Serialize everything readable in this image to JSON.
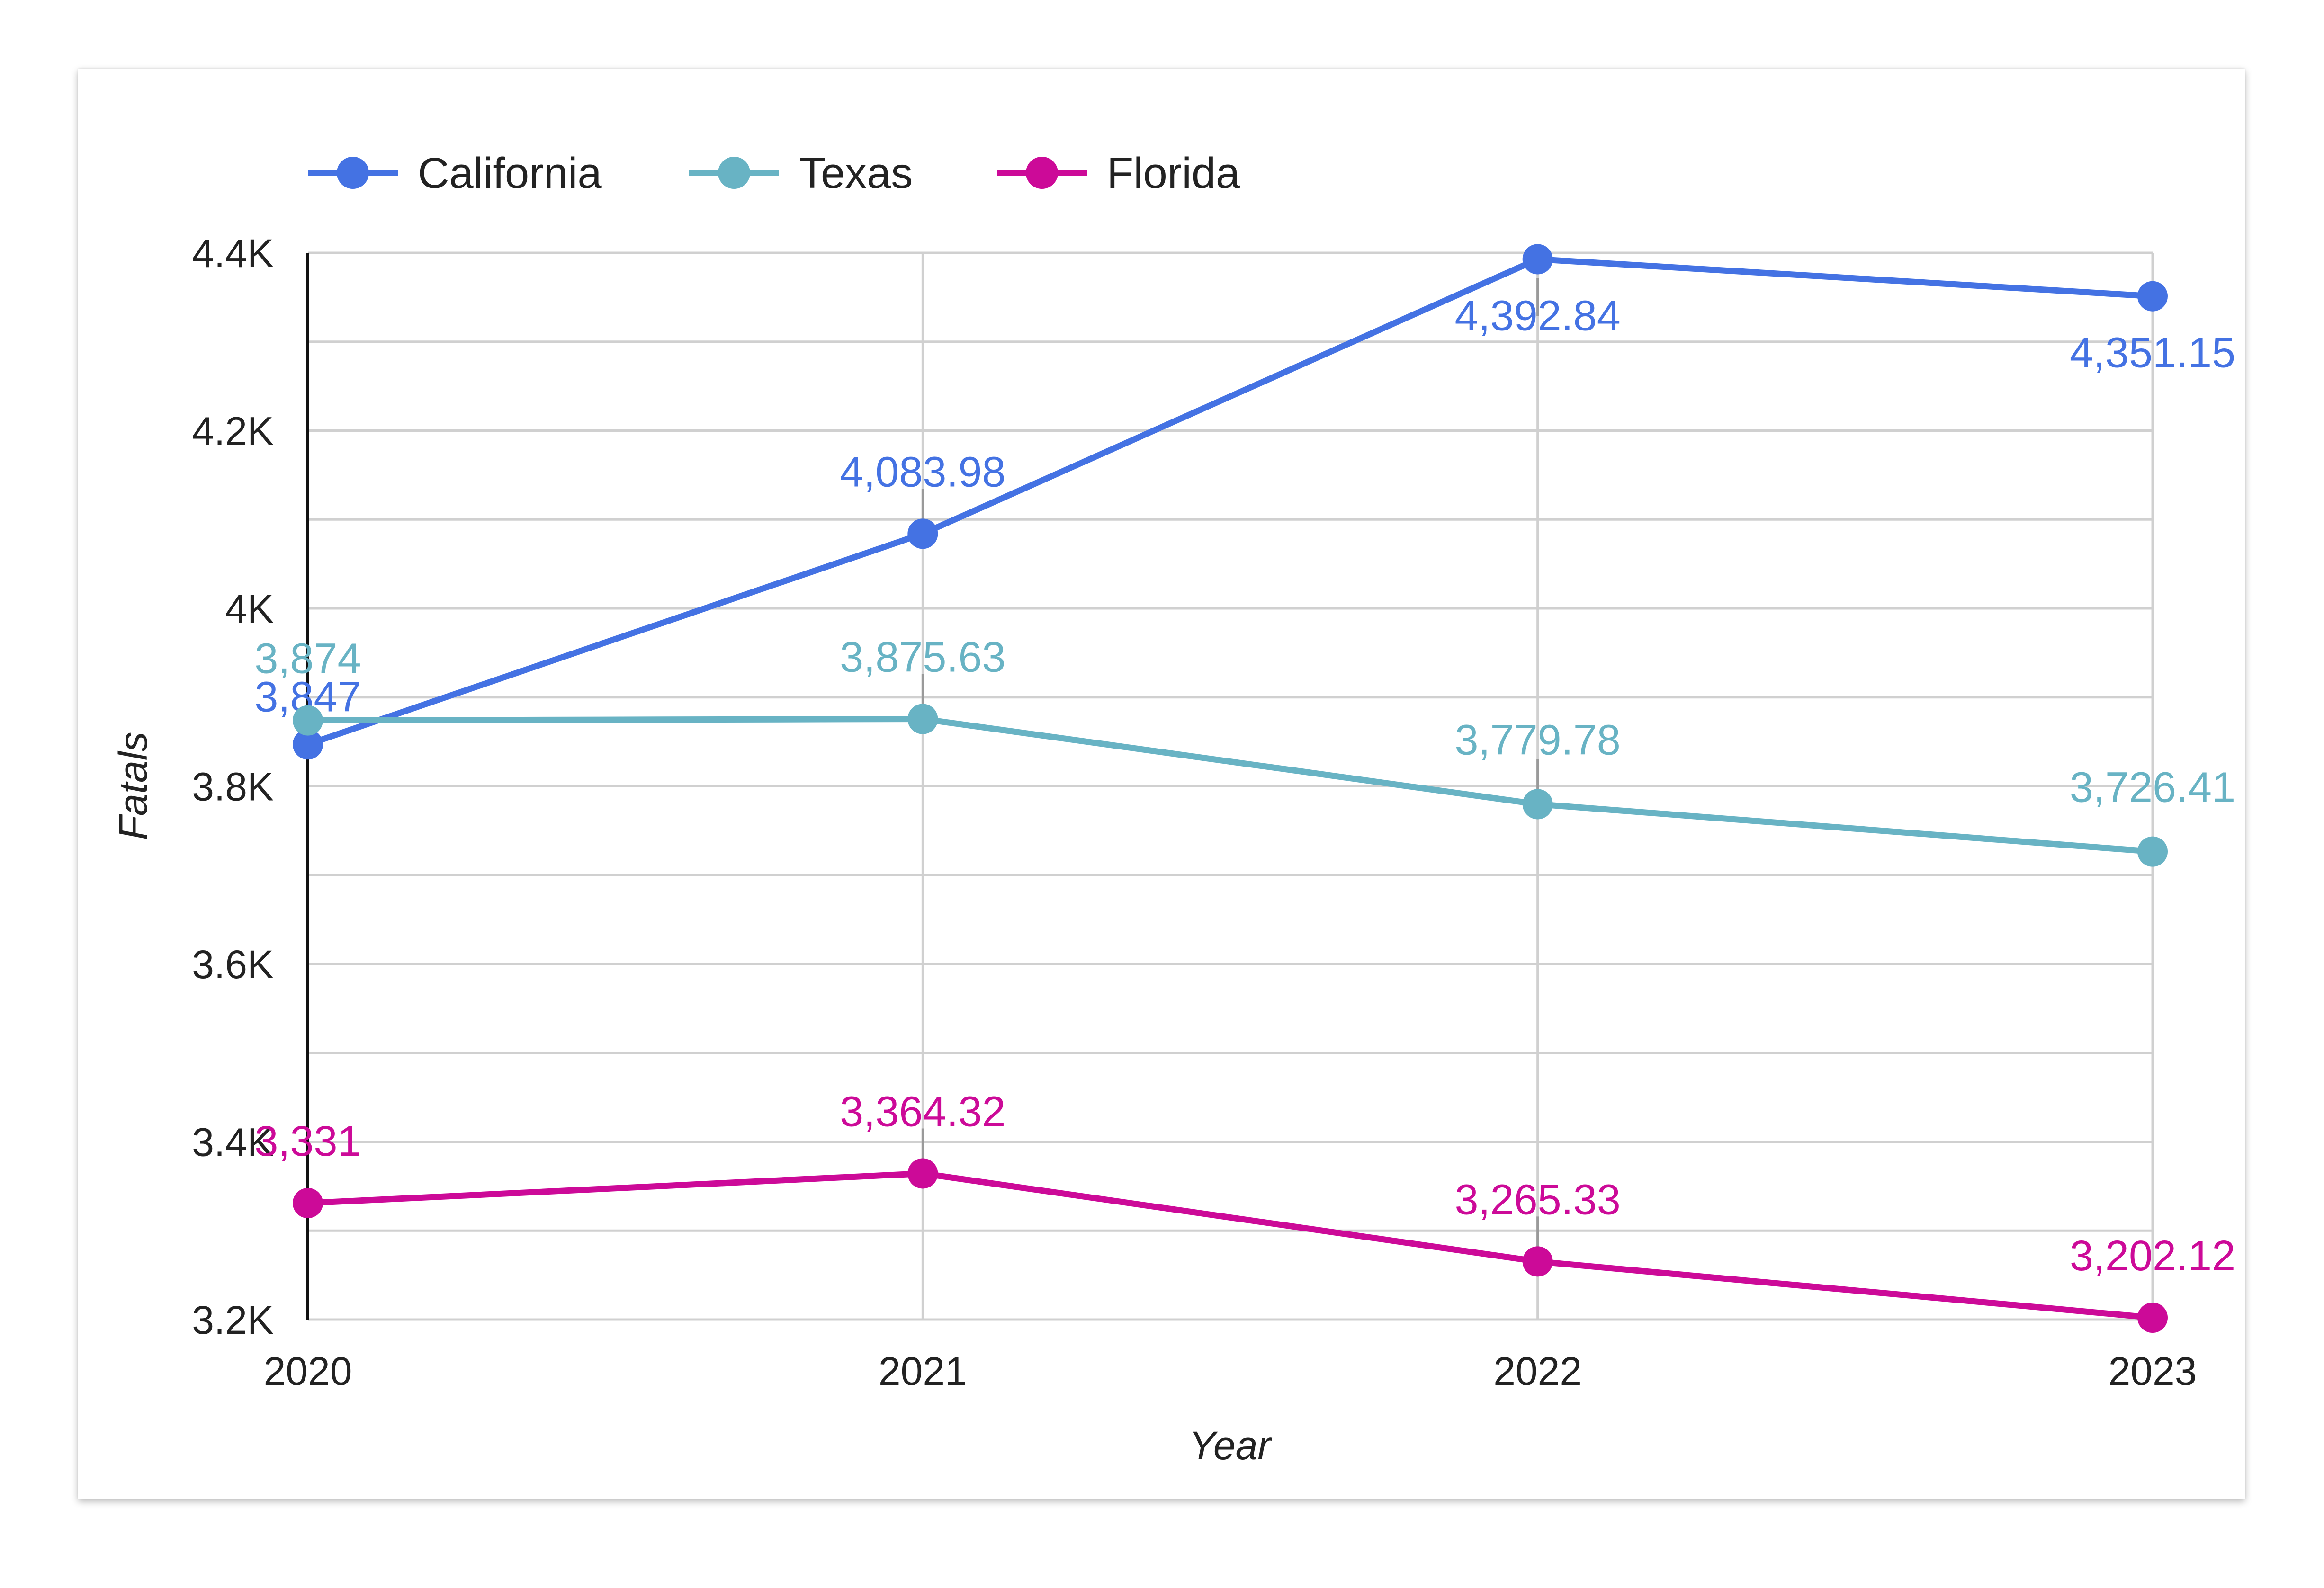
{
  "chart_data": {
    "type": "line",
    "title": "",
    "xlabel": "Year",
    "ylabel": "Fatals",
    "categories": [
      "2020",
      "2021",
      "2022",
      "2023"
    ],
    "ylim": [
      3200,
      4400
    ],
    "yticks": [
      3200,
      3400,
      3600,
      3800,
      4000,
      4200,
      4400
    ],
    "ytick_labels": [
      "3.2K",
      "3.4K",
      "3.6K",
      "3.8K",
      "4K",
      "4.2K",
      "4.4K"
    ],
    "grid": true,
    "legend": "top-left",
    "series": [
      {
        "name": "California",
        "color": "#4472e3",
        "values": [
          3847,
          4083.98,
          4392.84,
          4351.15
        ],
        "labels": [
          "3,847",
          "4,083.98",
          "4,392.84",
          "4,351.15"
        ]
      },
      {
        "name": "Texas",
        "color": "#68b3c4",
        "values": [
          3874,
          3875.63,
          3779.78,
          3726.41
        ],
        "labels": [
          "3,874",
          "3,875.63",
          "3,779.78",
          "3,726.41"
        ]
      },
      {
        "name": "Florida",
        "color": "#cc0a98",
        "values": [
          3331,
          3364.32,
          3265.33,
          3202.12
        ],
        "labels": [
          "3,331",
          "3,364.32",
          "3,265.33",
          "3,202.12"
        ]
      }
    ]
  }
}
